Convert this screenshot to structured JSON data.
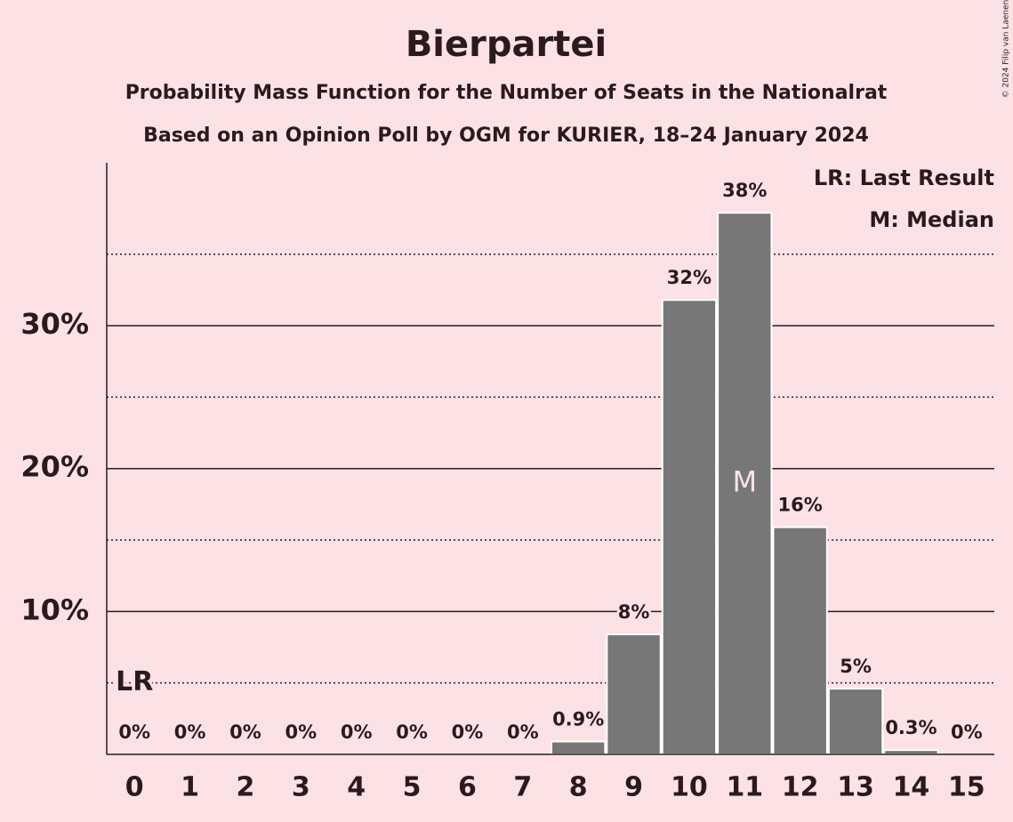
{
  "chart_data": {
    "type": "bar",
    "title": "Bierpartei",
    "subtitle": "Probability Mass Function for the Number of Seats in the Nationalrat",
    "subtitle2": "Based on an Opinion Poll by OGM for KURIER, 18–24 January 2024",
    "credit": "© 2024 Filip van Laenen",
    "categories": [
      "0",
      "1",
      "2",
      "3",
      "4",
      "5",
      "6",
      "7",
      "8",
      "9",
      "10",
      "11",
      "12",
      "13",
      "14",
      "15"
    ],
    "values": [
      0,
      0,
      0,
      0,
      0,
      0,
      0,
      0,
      0.9,
      8.4,
      31.8,
      37.9,
      15.9,
      4.6,
      0.3,
      0
    ],
    "value_labels": [
      "0%",
      "0%",
      "0%",
      "0%",
      "0%",
      "0%",
      "0%",
      "0%",
      "0.9%",
      "8%",
      "32%",
      "38%",
      "16%",
      "5%",
      "0.3%",
      "0%"
    ],
    "color": "#777777",
    "ylim": [
      0,
      41.4
    ],
    "yticks": [
      {
        "value": 10,
        "label": "10%"
      },
      {
        "value": 20,
        "label": "20%"
      },
      {
        "value": 30,
        "label": "30%"
      }
    ],
    "minor_yticks": [
      5,
      15,
      25,
      35
    ],
    "grid": true,
    "annotations": {
      "last_result": {
        "label": "LR",
        "category": 0
      },
      "median": {
        "label": "M",
        "category": 11
      }
    },
    "legend": [
      "LR: Last Result",
      "M: Median"
    ],
    "legend_position": "top-right"
  }
}
